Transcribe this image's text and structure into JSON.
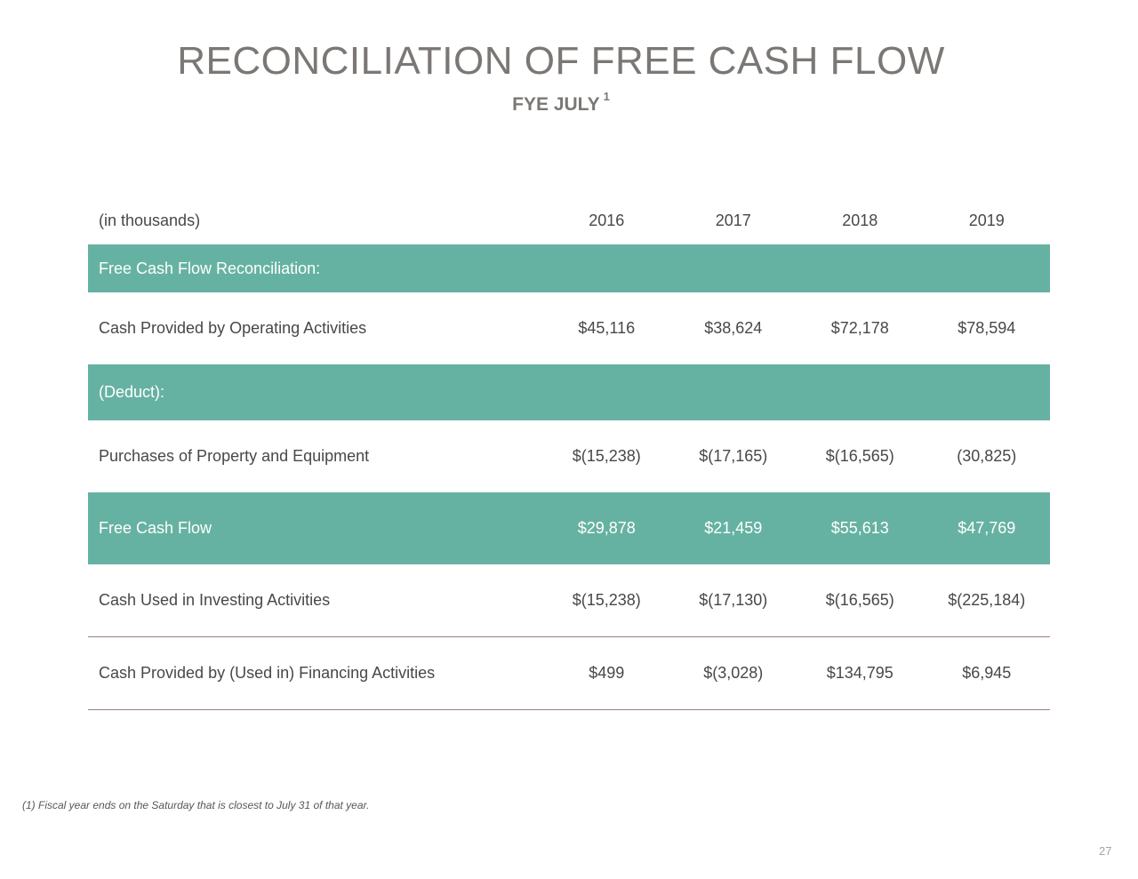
{
  "title": "RECONCILIATION OF FREE CASH FLOW",
  "subtitle": "FYE JULY",
  "subtitle_note": "1",
  "table": {
    "unit_label": "(in thousands)",
    "years": [
      "2016",
      "2017",
      "2018",
      "2019"
    ],
    "section_header": "Free Cash Flow Reconciliation:",
    "operating": {
      "label": "Cash Provided by Operating Activities",
      "values": [
        "$45,116",
        "$38,624",
        "$72,178",
        "$78,594"
      ]
    },
    "deduct_header": "(Deduct):",
    "purchases": {
      "label": "Purchases of Property and Equipment",
      "values": [
        "$(15,238)",
        "$(17,165)",
        "$(16,565)",
        "(30,825)"
      ]
    },
    "free_cash_flow": {
      "label": "Free Cash Flow",
      "values": [
        "$29,878",
        "$21,459",
        "$55,613",
        "$47,769"
      ]
    },
    "investing": {
      "label": "Cash Used in Investing Activities",
      "values": [
        "$(15,238)",
        "$(17,130)",
        "$(16,565)",
        "$(225,184)"
      ]
    },
    "financing": {
      "label": "Cash Provided by (Used in) Financing Activities",
      "values": [
        "$499",
        "$(3,028)",
        "$134,795",
        "$6,945"
      ]
    }
  },
  "footnote": "(1) Fiscal year ends on the Saturday that is closest to July 31 of that year.",
  "page_number": "27",
  "colors": {
    "accent": "#66b2a2",
    "title": "#7b7774",
    "rule": "#9a7f7d"
  }
}
